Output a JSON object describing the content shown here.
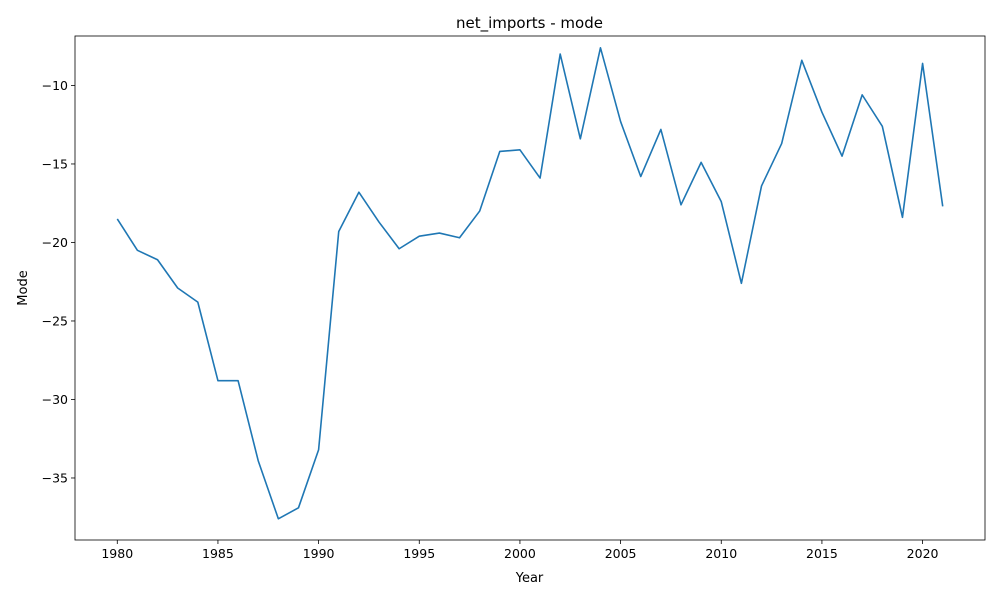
{
  "chart_data": {
    "type": "line",
    "title": "net_imports - mode",
    "xlabel": "Year",
    "ylabel": "Mode",
    "xlim": [
      1977.9,
      2023.1
    ],
    "ylim": [
      -38.95,
      -6.85
    ],
    "x_ticks": [
      1980,
      1985,
      1990,
      1995,
      2000,
      2005,
      2010,
      2015,
      2020
    ],
    "y_ticks": [
      -35,
      -30,
      -25,
      -20,
      -15,
      -10
    ],
    "y_tick_labels": [
      "−35",
      "−30",
      "−25",
      "−20",
      "−15",
      "−10"
    ],
    "grid": false,
    "line_color": "#1f77b4",
    "series": [
      {
        "x": [
          1980,
          1981,
          1982,
          1983,
          1984,
          1985,
          1986,
          1987,
          1988,
          1989,
          1990,
          1991,
          1992,
          1993,
          1994,
          1995,
          1996,
          1997,
          1998,
          1999,
          2000,
          2001,
          2002,
          2003,
          2004,
          2005,
          2006,
          2007,
          2008,
          2009,
          2010,
          2011,
          2012,
          2013,
          2014,
          2015,
          2016,
          2017,
          2018,
          2019,
          2020,
          2021
        ],
        "values": [
          -18.5,
          -20.5,
          -21.1,
          -22.9,
          -23.8,
          -28.8,
          -28.8,
          -33.9,
          -37.6,
          -36.9,
          -33.2,
          -19.3,
          -16.8,
          -18.7,
          -20.4,
          -19.6,
          -19.4,
          -19.7,
          -18.0,
          -14.2,
          -14.1,
          -15.9,
          -8.0,
          -13.4,
          -7.6,
          -12.3,
          -15.8,
          -12.8,
          -17.6,
          -14.9,
          -17.4,
          -22.6,
          -16.4,
          -13.7,
          -8.4,
          -11.7,
          -14.5,
          -10.6,
          -12.6,
          -18.4,
          -8.6,
          -17.7
        ]
      }
    ]
  }
}
